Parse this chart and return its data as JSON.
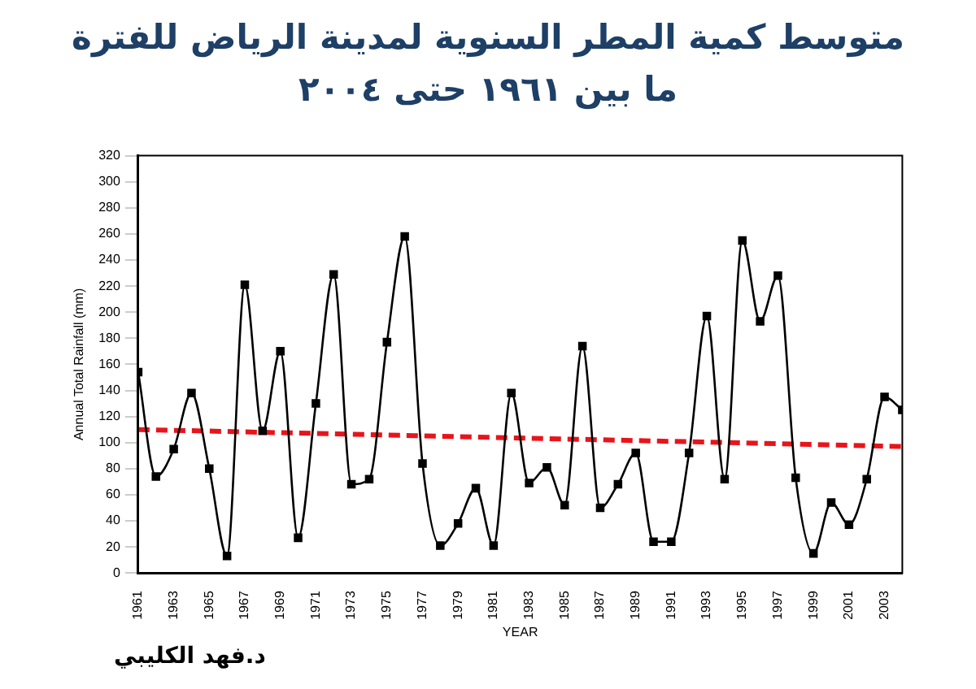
{
  "chart_data": {
    "type": "line",
    "title": "متوسط كمية المطر السنوية لمدينة الرياض للفترة",
    "subtitle": "ما بين ١٩٦١ حتى ٢٠٠٤",
    "xlabel": "YEAR",
    "ylabel": "Annual Total Rainfall (mm)",
    "annotations": [
      "د.فهد الكليبي"
    ],
    "x": [
      1961,
      1962,
      1963,
      1964,
      1965,
      1966,
      1967,
      1968,
      1969,
      1970,
      1971,
      1972,
      1973,
      1974,
      1975,
      1976,
      1977,
      1978,
      1979,
      1980,
      1981,
      1982,
      1983,
      1984,
      1985,
      1986,
      1987,
      1988,
      1989,
      1990,
      1991,
      1992,
      1993,
      1994,
      1995,
      1996,
      1997,
      1998,
      1999,
      2000,
      2001,
      2002,
      2003,
      2004
    ],
    "series": [
      {
        "color": "#000000",
        "marker": "square",
        "values": [
          154,
          74,
          95,
          138,
          80,
          13,
          221,
          109,
          170,
          27,
          130,
          229,
          68,
          72,
          177,
          258,
          84,
          21,
          38,
          65,
          21,
          138,
          69,
          81,
          52,
          174,
          50,
          68,
          92,
          24,
          24,
          92,
          197,
          72,
          255,
          193,
          228,
          73,
          15,
          54,
          37,
          72,
          135,
          125
        ]
      },
      {
        "type": "line",
        "color": "#e8141b",
        "marker": "none",
        "line_style": "dashed",
        "x": [
          1961,
          2004
        ],
        "values": [
          110,
          97
        ]
      }
    ],
    "xlim": [
      1961,
      2004
    ],
    "xticks": [
      1961,
      1963,
      1965,
      1967,
      1969,
      1971,
      1973,
      1975,
      1977,
      1979,
      1981,
      1983,
      1985,
      1987,
      1989,
      1991,
      1993,
      1995,
      1997,
      1999,
      2001,
      2003
    ],
    "ylim": [
      0,
      320
    ],
    "yticks": [
      0,
      20,
      40,
      60,
      80,
      100,
      120,
      140,
      160,
      180,
      200,
      220,
      240,
      260,
      280,
      300,
      320
    ],
    "grid": false,
    "legend": false
  }
}
